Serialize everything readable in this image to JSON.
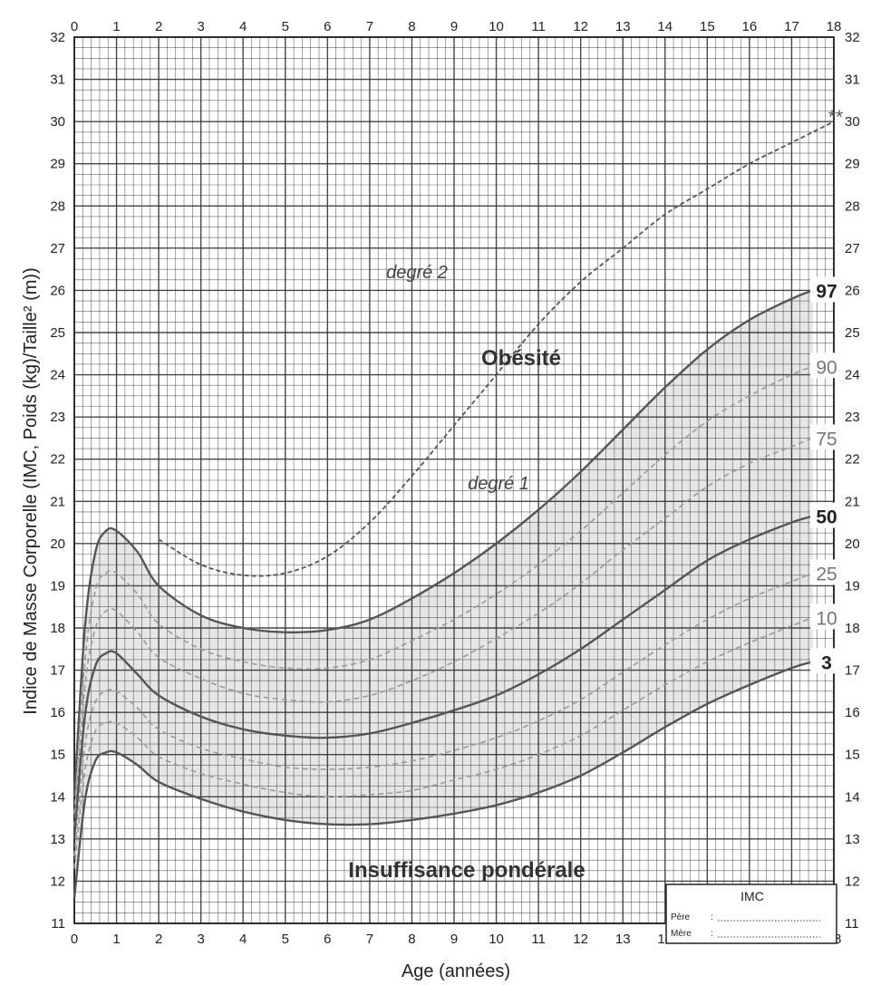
{
  "chart_data": {
    "type": "line",
    "ylabel": "Indice de Masse Corporelle (IMC, Poids (kg)/Taille² (m))",
    "xlabel": "Age (années)",
    "xlim": [
      0,
      18
    ],
    "ylim": [
      11,
      32
    ],
    "x_ticks": [
      "0",
      "1",
      "2",
      "3",
      "4",
      "5",
      "6",
      "7",
      "8",
      "9",
      "10",
      "11",
      "12",
      "13",
      "14",
      "15",
      "16",
      "17",
      "18"
    ],
    "y_ticks": [
      "11",
      "12",
      "13",
      "14",
      "15",
      "16",
      "17",
      "18",
      "19",
      "20",
      "21",
      "22",
      "23",
      "24",
      "25",
      "26",
      "27",
      "28",
      "29",
      "30",
      "31",
      "32"
    ],
    "grid": true,
    "colors": {
      "solid": "#555555",
      "dashed": "#9a9a9a",
      "obesity_line": "#555555",
      "band": "#e6e6e6",
      "grid": "#333333"
    },
    "series": [
      {
        "name": "97",
        "style": "solid",
        "bold_label": true,
        "x": [
          0,
          0.25,
          0.5,
          0.75,
          1,
          1.5,
          2,
          3,
          4,
          5,
          6,
          7,
          8,
          9,
          10,
          11,
          12,
          13,
          14,
          15,
          16,
          17,
          17.5
        ],
        "y": [
          14.0,
          18.0,
          19.8,
          20.3,
          20.3,
          19.8,
          19.0,
          18.3,
          18.0,
          17.9,
          17.95,
          18.2,
          18.7,
          19.3,
          20.0,
          20.8,
          21.7,
          22.7,
          23.7,
          24.6,
          25.3,
          25.8,
          26.0
        ]
      },
      {
        "name": "90",
        "style": "dashed",
        "bold_label": false,
        "x": [
          0,
          0.25,
          0.5,
          0.75,
          1,
          1.5,
          2,
          3,
          4,
          5,
          6,
          7,
          8,
          9,
          10,
          11,
          12,
          13,
          14,
          15,
          16,
          17,
          17.5
        ],
        "y": [
          13.6,
          17.2,
          18.9,
          19.3,
          19.3,
          18.8,
          18.1,
          17.5,
          17.2,
          17.05,
          17.05,
          17.25,
          17.7,
          18.2,
          18.8,
          19.5,
          20.3,
          21.2,
          22.1,
          22.9,
          23.5,
          24.0,
          24.2
        ]
      },
      {
        "name": "75",
        "style": "dashed",
        "bold_label": false,
        "x": [
          0,
          0.25,
          0.5,
          0.75,
          1,
          1.5,
          2,
          3,
          4,
          5,
          6,
          7,
          8,
          9,
          10,
          11,
          12,
          13,
          14,
          15,
          16,
          17,
          17.5
        ],
        "y": [
          13.3,
          16.6,
          18.0,
          18.4,
          18.4,
          17.9,
          17.3,
          16.8,
          16.45,
          16.3,
          16.25,
          16.4,
          16.75,
          17.2,
          17.75,
          18.35,
          19.05,
          19.85,
          20.6,
          21.35,
          21.9,
          22.3,
          22.5
        ]
      },
      {
        "name": "50",
        "style": "solid",
        "bold_label": true,
        "x": [
          0,
          0.25,
          0.5,
          0.75,
          1,
          1.5,
          2,
          3,
          4,
          5,
          6,
          7,
          8,
          9,
          10,
          11,
          12,
          13,
          14,
          15,
          16,
          17,
          17.5
        ],
        "y": [
          13.0,
          15.9,
          17.1,
          17.4,
          17.4,
          16.9,
          16.4,
          15.9,
          15.6,
          15.45,
          15.4,
          15.5,
          15.75,
          16.05,
          16.4,
          16.9,
          17.5,
          18.2,
          18.9,
          19.6,
          20.1,
          20.5,
          20.65
        ]
      },
      {
        "name": "25",
        "style": "dashed",
        "bold_label": false,
        "x": [
          0,
          0.25,
          0.5,
          0.75,
          1,
          1.5,
          2,
          3,
          4,
          5,
          6,
          7,
          8,
          9,
          10,
          11,
          12,
          13,
          14,
          15,
          16,
          17,
          17.5
        ],
        "y": [
          12.6,
          15.2,
          16.25,
          16.5,
          16.5,
          16.1,
          15.6,
          15.15,
          14.9,
          14.7,
          14.65,
          14.7,
          14.85,
          15.1,
          15.4,
          15.8,
          16.3,
          16.95,
          17.6,
          18.2,
          18.7,
          19.1,
          19.3
        ]
      },
      {
        "name": "10",
        "style": "dashed",
        "bold_label": false,
        "x": [
          0,
          0.25,
          0.5,
          0.75,
          1,
          1.5,
          2,
          3,
          4,
          5,
          6,
          7,
          8,
          9,
          10,
          11,
          12,
          13,
          14,
          15,
          16,
          17,
          17.5
        ],
        "y": [
          12.3,
          14.6,
          15.55,
          15.75,
          15.75,
          15.4,
          14.95,
          14.55,
          14.3,
          14.1,
          14.0,
          14.05,
          14.15,
          14.4,
          14.65,
          15.0,
          15.45,
          16.05,
          16.65,
          17.2,
          17.65,
          18.05,
          18.25
        ]
      },
      {
        "name": "3",
        "style": "solid",
        "bold_label": true,
        "x": [
          0,
          0.25,
          0.5,
          0.75,
          1,
          1.5,
          2,
          3,
          4,
          5,
          6,
          7,
          8,
          9,
          10,
          11,
          12,
          13,
          14,
          15,
          16,
          17,
          17.5
        ],
        "y": [
          11.6,
          13.9,
          14.85,
          15.05,
          15.05,
          14.75,
          14.35,
          13.95,
          13.65,
          13.45,
          13.35,
          13.35,
          13.45,
          13.6,
          13.8,
          14.1,
          14.5,
          15.05,
          15.65,
          16.2,
          16.65,
          17.05,
          17.2
        ]
      },
      {
        "name": "**",
        "style": "dashed-dark",
        "bold_label": false,
        "x": [
          2,
          3,
          4,
          5,
          6,
          7,
          8,
          9,
          10,
          11,
          12,
          13,
          14,
          15,
          16,
          17,
          18
        ],
        "y": [
          20.1,
          19.5,
          19.25,
          19.3,
          19.7,
          20.5,
          21.6,
          22.8,
          24.0,
          25.2,
          26.2,
          27.0,
          27.8,
          28.4,
          29.0,
          29.5,
          30.0
        ]
      }
    ],
    "annotations": {
      "obesite": "Obésité",
      "degre2": "degré 2",
      "degre1": "degré 1",
      "insuffisance": "Insuffisance pondérale"
    }
  },
  "imc_box": {
    "title": "IMC",
    "pere_label": "Père",
    "mere_label": "Mère",
    "colon": ":"
  }
}
